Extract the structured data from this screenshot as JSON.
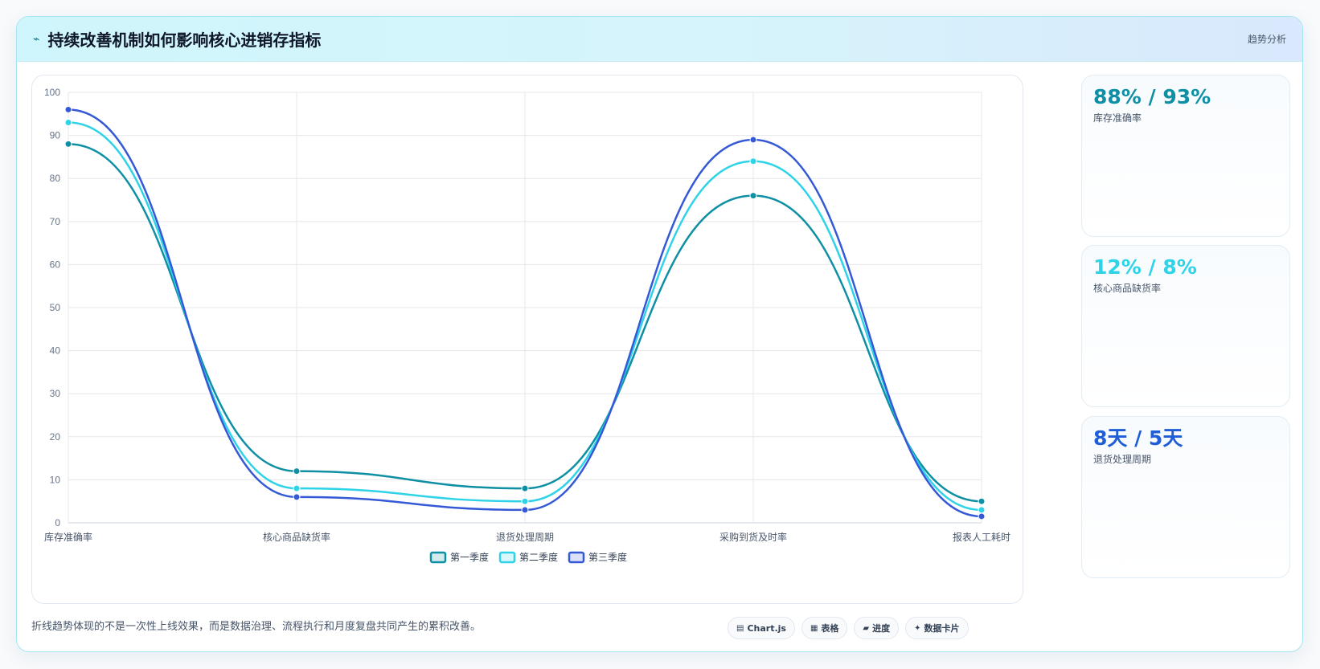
{
  "header": {
    "icon": "trend-icon",
    "title": "持续改善机制如何影响核心进销存指标",
    "tag": "趋势分析"
  },
  "chart_data": {
    "type": "line",
    "categories": [
      "库存准确率",
      "核心商品缺货率",
      "退货处理周期",
      "采购到货及时率",
      "报表人工耗时"
    ],
    "ylim": [
      0,
      100
    ],
    "yticks": [
      0,
      10,
      20,
      30,
      40,
      50,
      60,
      70,
      80,
      90,
      100
    ],
    "grid": true,
    "legend_position": "bottom",
    "series": [
      {
        "name": "第一季度",
        "values": [
          88,
          12,
          8,
          76,
          5
        ],
        "color": "#0e8fa3"
      },
      {
        "name": "第二季度",
        "values": [
          93,
          8,
          5,
          84,
          3
        ],
        "color": "#2fd3e8"
      },
      {
        "name": "第三季度",
        "values": [
          96,
          6,
          3,
          89,
          1.5
        ],
        "color": "#3559d6"
      }
    ]
  },
  "stats": [
    {
      "value": "88% / 93%",
      "label": "库存准确率",
      "color": "#0e8fa3"
    },
    {
      "value": "12% / 8%",
      "label": "核心商品缺货率",
      "color": "#2fd3e8"
    },
    {
      "value": "8天 / 5天",
      "label": "退货处理周期",
      "color": "#1f5ed6"
    }
  ],
  "footer": {
    "text": "折线趋势体现的不是一次性上线效果，而是数据治理、流程执行和月度复盘共同产生的累积改善。",
    "chips": [
      {
        "icon": "chart-icon",
        "glyph": "▤",
        "label": "Chart.js"
      },
      {
        "icon": "table-icon",
        "glyph": "▦",
        "label": "表格"
      },
      {
        "icon": "progress-icon",
        "glyph": "▰",
        "label": "进度"
      },
      {
        "icon": "card-icon",
        "glyph": "✦",
        "label": "数据卡片"
      }
    ]
  }
}
